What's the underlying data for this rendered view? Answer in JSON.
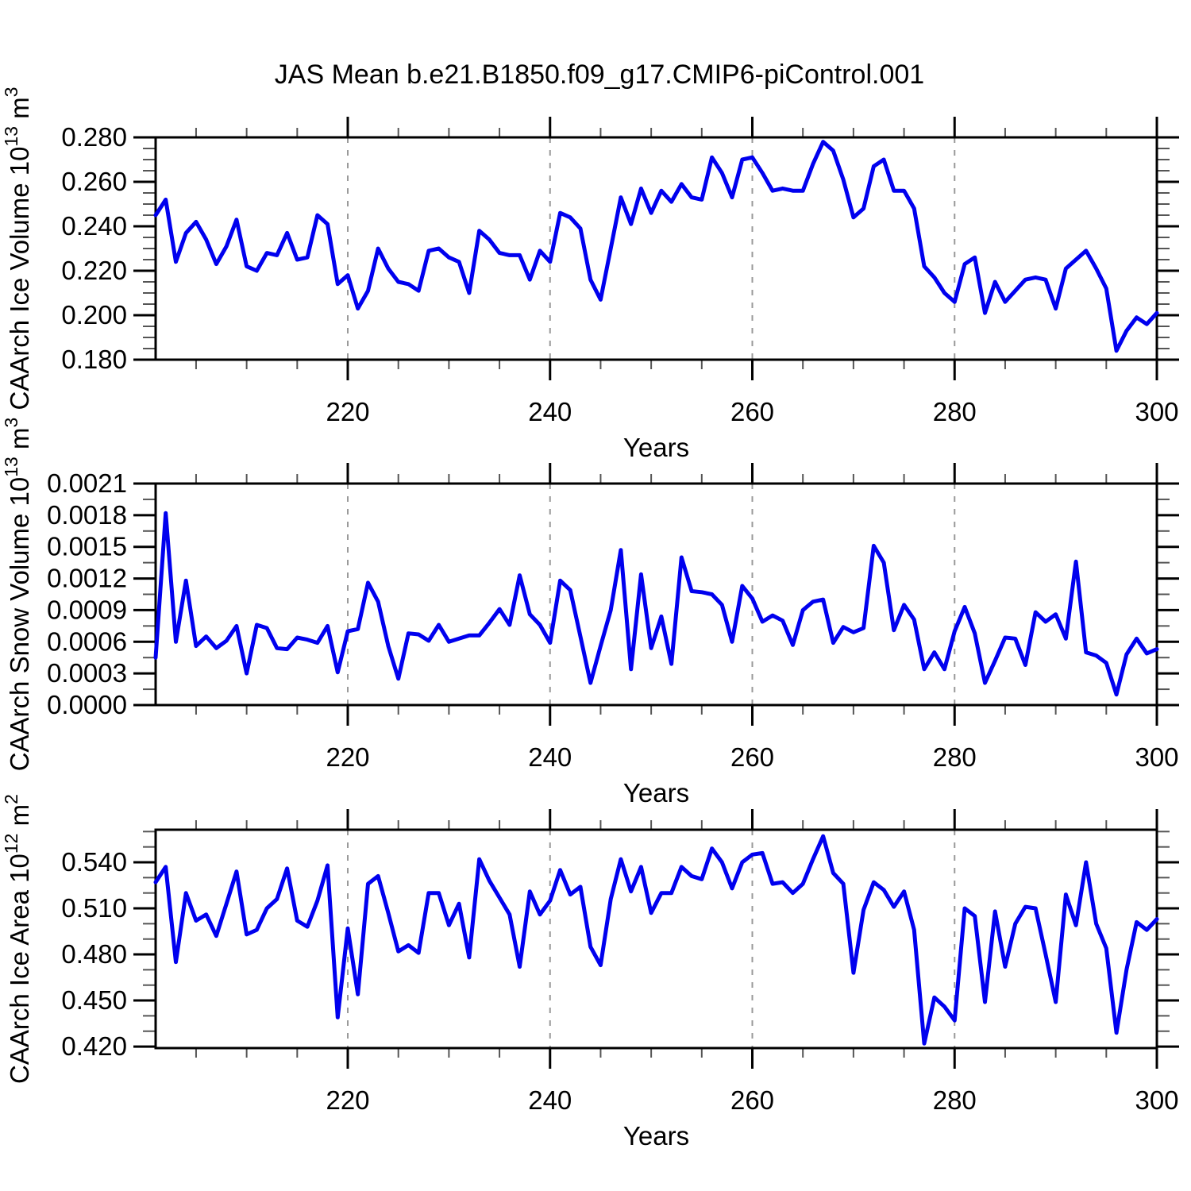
{
  "title": "JAS Mean b.e21.B1850.f09_g17.CMIP6-piControl.001",
  "chart_data": {
    "type": "line",
    "title": "JAS Mean b.e21.B1850.f09_g17.CMIP6-piControl.001",
    "line_color": "#0000EE",
    "gridline_color": "#999999",
    "axis_color": "#000000",
    "legend": "none",
    "grid": "vertical-dashed-only",
    "x": {
      "label": "Years",
      "start": 201,
      "end": 300,
      "major_ticks": [
        220,
        240,
        260,
        280,
        300
      ],
      "minor_tick_step": 5,
      "gridlines": [
        220,
        240,
        260,
        280
      ]
    },
    "years": [
      201,
      202,
      203,
      204,
      205,
      206,
      207,
      208,
      209,
      210,
      211,
      212,
      213,
      214,
      215,
      216,
      217,
      218,
      219,
      220,
      221,
      222,
      223,
      224,
      225,
      226,
      227,
      228,
      229,
      230,
      231,
      232,
      233,
      234,
      235,
      236,
      237,
      238,
      239,
      240,
      241,
      242,
      243,
      244,
      245,
      246,
      247,
      248,
      249,
      250,
      251,
      252,
      253,
      254,
      255,
      256,
      257,
      258,
      259,
      260,
      261,
      262,
      263,
      264,
      265,
      266,
      267,
      268,
      269,
      270,
      271,
      272,
      273,
      274,
      275,
      276,
      277,
      278,
      279,
      280,
      281,
      282,
      283,
      284,
      285,
      286,
      287,
      288,
      289,
      290,
      291,
      292,
      293,
      294,
      295,
      296,
      297,
      298,
      299,
      300
    ],
    "panels": [
      {
        "id": "ice-volume",
        "ylabel": "CAArch Ice Volume 10^13 m^3",
        "ylabel_parts": [
          {
            "text": "CAArch Ice Volume 10",
            "sup": false
          },
          {
            "text": "13",
            "sup": true
          },
          {
            "text": " m",
            "sup": false
          },
          {
            "text": "3",
            "sup": true
          }
        ],
        "ylim": [
          0.18,
          0.28
        ],
        "yticks": [
          0.18,
          0.2,
          0.22,
          0.24,
          0.26,
          0.28
        ],
        "ytick_labels": [
          "0.180",
          "0.200",
          "0.220",
          "0.240",
          "0.260",
          "0.280"
        ],
        "minor_step": 0.005,
        "values": [
          0.245,
          0.252,
          0.224,
          0.237,
          0.242,
          0.234,
          0.223,
          0.231,
          0.243,
          0.222,
          0.22,
          0.228,
          0.227,
          0.237,
          0.225,
          0.226,
          0.245,
          0.241,
          0.214,
          0.218,
          0.203,
          0.211,
          0.23,
          0.221,
          0.215,
          0.214,
          0.211,
          0.229,
          0.23,
          0.226,
          0.224,
          0.21,
          0.238,
          0.234,
          0.228,
          0.227,
          0.227,
          0.216,
          0.229,
          0.224,
          0.246,
          0.244,
          0.239,
          0.216,
          0.207,
          0.23,
          0.253,
          0.241,
          0.257,
          0.246,
          0.256,
          0.251,
          0.259,
          0.253,
          0.252,
          0.271,
          0.264,
          0.253,
          0.27,
          0.271,
          0.264,
          0.256,
          0.257,
          0.256,
          0.256,
          0.268,
          0.278,
          0.274,
          0.261,
          0.244,
          0.248,
          0.267,
          0.27,
          0.256,
          0.256,
          0.248,
          0.222,
          0.217,
          0.21,
          0.206,
          0.223,
          0.226,
          0.201,
          0.215,
          0.206,
          0.211,
          0.216,
          0.217,
          0.216,
          0.203,
          0.221,
          0.225,
          0.229,
          0.221,
          0.212,
          0.184,
          0.193,
          0.199,
          0.196,
          0.201
        ]
      },
      {
        "id": "snow-volume",
        "ylabel": "CAArch Snow Volume 10^13 m^3",
        "ylabel_parts": [
          {
            "text": "CAArch Snow Volume 10",
            "sup": false
          },
          {
            "text": "13",
            "sup": true
          },
          {
            "text": " m",
            "sup": false
          },
          {
            "text": "3",
            "sup": true
          }
        ],
        "ylim": [
          0.0,
          0.0021
        ],
        "yticks": [
          0.0,
          0.0003,
          0.0006,
          0.0009,
          0.0012,
          0.0015,
          0.0018,
          0.0021
        ],
        "ytick_labels": [
          "0.0000",
          "0.0003",
          "0.0006",
          "0.0009",
          "0.0012",
          "0.0015",
          "0.0018",
          "0.0021"
        ],
        "minor_step": 0.00015,
        "values": [
          0.00045,
          0.00182,
          0.0006,
          0.00118,
          0.00056,
          0.00065,
          0.00054,
          0.00061,
          0.00075,
          0.0003,
          0.00076,
          0.00073,
          0.00054,
          0.00053,
          0.00064,
          0.00062,
          0.00059,
          0.00075,
          0.00031,
          0.0007,
          0.00072,
          0.00116,
          0.00098,
          0.00056,
          0.00025,
          0.00068,
          0.00067,
          0.00061,
          0.00076,
          0.0006,
          0.00063,
          0.00066,
          0.00066,
          0.00078,
          0.00091,
          0.00076,
          0.00123,
          0.00086,
          0.00076,
          0.00059,
          0.00118,
          0.00109,
          0.00065,
          0.00021,
          0.00056,
          0.0009,
          0.00147,
          0.00034,
          0.00124,
          0.00054,
          0.00084,
          0.00039,
          0.0014,
          0.00108,
          0.00107,
          0.00105,
          0.00095,
          0.0006,
          0.00113,
          0.00101,
          0.00079,
          0.00085,
          0.0008,
          0.00057,
          0.0009,
          0.00098,
          0.001,
          0.00059,
          0.00074,
          0.00069,
          0.00073,
          0.00151,
          0.00135,
          0.00071,
          0.00095,
          0.00081,
          0.00034,
          0.0005,
          0.00034,
          0.0007,
          0.00093,
          0.00068,
          0.00021,
          0.00042,
          0.00064,
          0.00063,
          0.00038,
          0.00088,
          0.00079,
          0.00086,
          0.00063,
          0.00136,
          0.0005,
          0.00047,
          0.0004,
          0.0001,
          0.00048,
          0.00063,
          0.00049,
          0.00053
        ]
      },
      {
        "id": "ice-area",
        "ylabel": "CAArch Ice Area 10^12 m^2",
        "ylabel_parts": [
          {
            "text": "CAArch Ice Area 10",
            "sup": false
          },
          {
            "text": "12",
            "sup": true
          },
          {
            "text": " m",
            "sup": false
          },
          {
            "text": "2",
            "sup": true
          }
        ],
        "ylim": [
          0.419,
          0.5612
        ],
        "yticks": [
          0.42,
          0.45,
          0.48,
          0.51,
          0.54
        ],
        "ytick_labels": [
          "0.420",
          "0.450",
          "0.480",
          "0.510",
          "0.540"
        ],
        "minor_step": 0.01,
        "values": [
          0.527,
          0.537,
          0.475,
          0.52,
          0.502,
          0.506,
          0.492,
          0.513,
          0.534,
          0.493,
          0.496,
          0.51,
          0.516,
          0.536,
          0.502,
          0.498,
          0.515,
          0.538,
          0.439,
          0.497,
          0.454,
          0.526,
          0.531,
          0.507,
          0.482,
          0.486,
          0.481,
          0.52,
          0.52,
          0.499,
          0.513,
          0.478,
          0.542,
          0.528,
          0.517,
          0.506,
          0.472,
          0.521,
          0.506,
          0.515,
          0.535,
          0.519,
          0.524,
          0.485,
          0.473,
          0.516,
          0.542,
          0.521,
          0.537,
          0.507,
          0.52,
          0.52,
          0.537,
          0.531,
          0.529,
          0.549,
          0.54,
          0.523,
          0.54,
          0.545,
          0.546,
          0.526,
          0.527,
          0.52,
          0.526,
          0.542,
          0.557,
          0.533,
          0.526,
          0.468,
          0.509,
          0.527,
          0.522,
          0.511,
          0.521,
          0.496,
          0.422,
          0.452,
          0.446,
          0.437,
          0.51,
          0.505,
          0.449,
          0.508,
          0.472,
          0.5,
          0.511,
          0.51,
          0.48,
          0.449,
          0.519,
          0.499,
          0.54,
          0.5,
          0.484,
          0.429,
          0.47,
          0.501,
          0.496,
          0.503
        ]
      }
    ]
  }
}
